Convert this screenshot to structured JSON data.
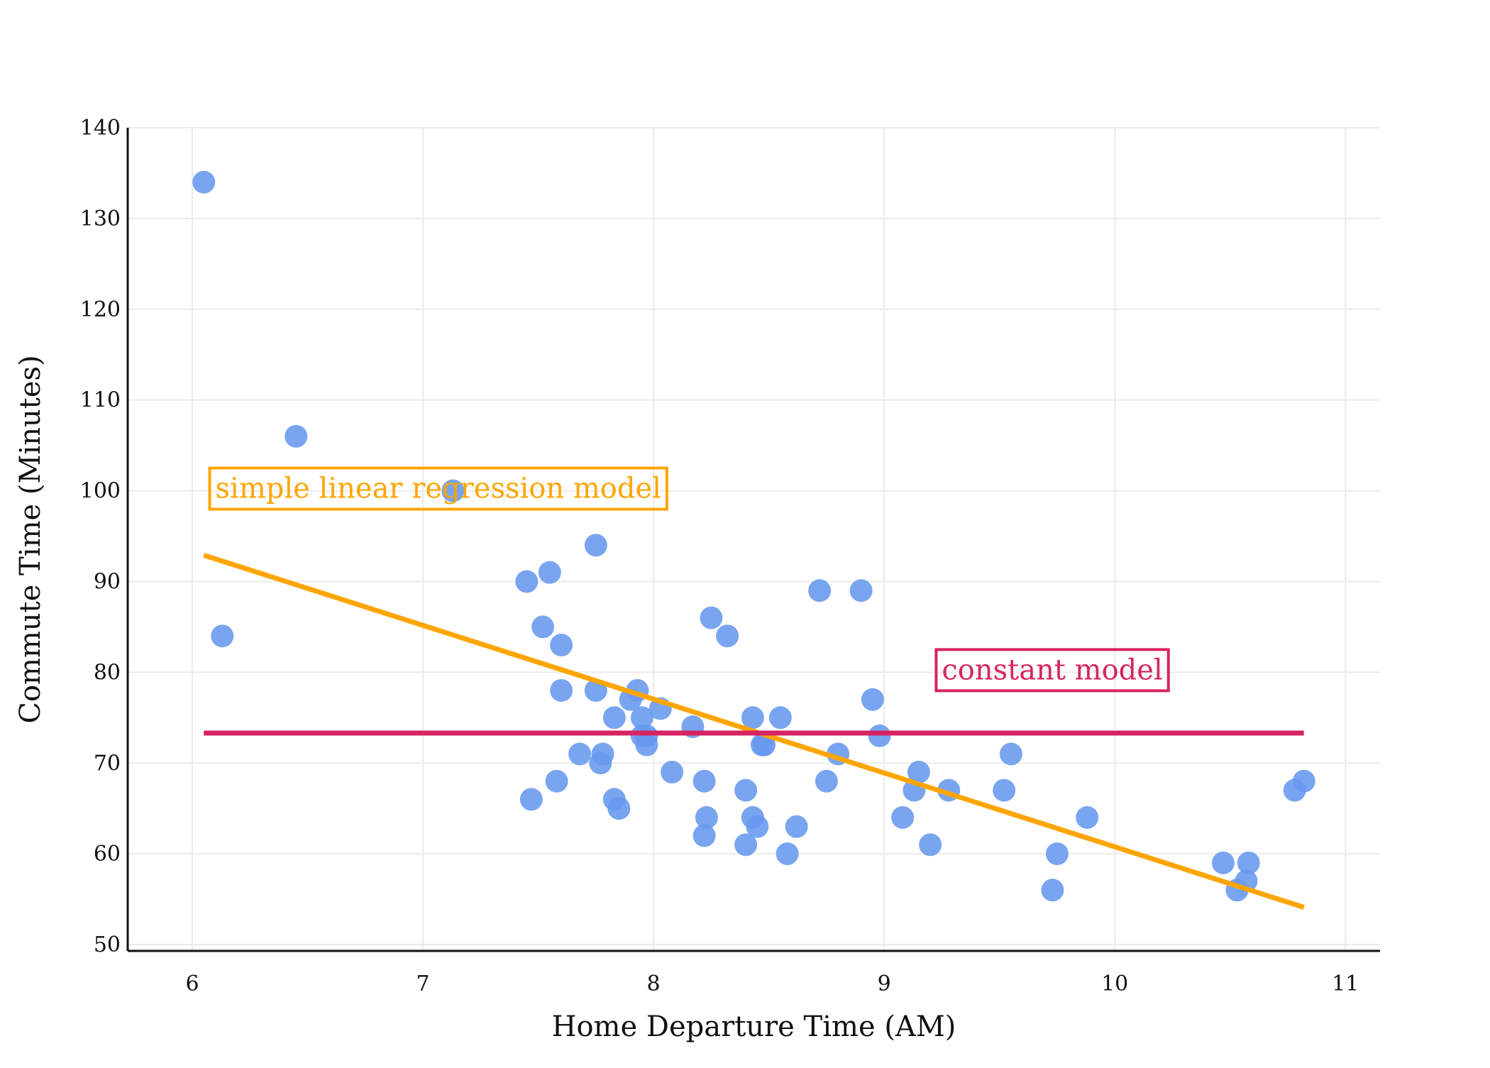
{
  "chart_data": {
    "type": "scatter",
    "title": "",
    "xlabel": "Home Departure Time (AM)",
    "ylabel": "Commute Time (Minutes)",
    "xlim": [
      5.72,
      11.15
    ],
    "ylim": [
      49.3,
      140
    ],
    "xticks": [
      6,
      7,
      8,
      9,
      10,
      11
    ],
    "yticks": [
      50,
      60,
      70,
      80,
      90,
      100,
      110,
      120,
      130,
      140
    ],
    "grid": true,
    "legend": "none",
    "series": [
      {
        "color": "#6699ee",
        "points": [
          {
            "x": 6.05,
            "y": 134
          },
          {
            "x": 6.13,
            "y": 84
          },
          {
            "x": 6.45,
            "y": 106
          },
          {
            "x": 7.13,
            "y": 100
          },
          {
            "x": 7.45,
            "y": 90
          },
          {
            "x": 7.47,
            "y": 66
          },
          {
            "x": 7.52,
            "y": 85
          },
          {
            "x": 7.55,
            "y": 91
          },
          {
            "x": 7.58,
            "y": 68
          },
          {
            "x": 7.6,
            "y": 83
          },
          {
            "x": 7.6,
            "y": 78
          },
          {
            "x": 7.68,
            "y": 71
          },
          {
            "x": 7.75,
            "y": 94
          },
          {
            "x": 7.75,
            "y": 78
          },
          {
            "x": 7.77,
            "y": 70
          },
          {
            "x": 7.78,
            "y": 71
          },
          {
            "x": 7.83,
            "y": 75
          },
          {
            "x": 7.83,
            "y": 66
          },
          {
            "x": 7.85,
            "y": 65
          },
          {
            "x": 7.9,
            "y": 77
          },
          {
            "x": 7.93,
            "y": 78
          },
          {
            "x": 7.95,
            "y": 75
          },
          {
            "x": 7.95,
            "y": 73
          },
          {
            "x": 7.97,
            "y": 72
          },
          {
            "x": 7.97,
            "y": 73
          },
          {
            "x": 8.03,
            "y": 76
          },
          {
            "x": 8.08,
            "y": 69
          },
          {
            "x": 8.17,
            "y": 74
          },
          {
            "x": 8.22,
            "y": 68
          },
          {
            "x": 8.22,
            "y": 62
          },
          {
            "x": 8.23,
            "y": 64
          },
          {
            "x": 8.25,
            "y": 86
          },
          {
            "x": 8.32,
            "y": 84
          },
          {
            "x": 8.4,
            "y": 67
          },
          {
            "x": 8.4,
            "y": 61
          },
          {
            "x": 8.43,
            "y": 75
          },
          {
            "x": 8.43,
            "y": 64
          },
          {
            "x": 8.45,
            "y": 63
          },
          {
            "x": 8.47,
            "y": 72
          },
          {
            "x": 8.48,
            "y": 72
          },
          {
            "x": 8.55,
            "y": 75
          },
          {
            "x": 8.58,
            "y": 60
          },
          {
            "x": 8.62,
            "y": 63
          },
          {
            "x": 8.72,
            "y": 89
          },
          {
            "x": 8.75,
            "y": 68
          },
          {
            "x": 8.8,
            "y": 71
          },
          {
            "x": 8.9,
            "y": 89
          },
          {
            "x": 8.95,
            "y": 77
          },
          {
            "x": 8.98,
            "y": 73
          },
          {
            "x": 9.08,
            "y": 64
          },
          {
            "x": 9.13,
            "y": 67
          },
          {
            "x": 9.15,
            "y": 69
          },
          {
            "x": 9.2,
            "y": 61
          },
          {
            "x": 9.28,
            "y": 67
          },
          {
            "x": 9.52,
            "y": 67
          },
          {
            "x": 9.55,
            "y": 71
          },
          {
            "x": 9.73,
            "y": 56
          },
          {
            "x": 9.75,
            "y": 60
          },
          {
            "x": 9.88,
            "y": 64
          },
          {
            "x": 10.47,
            "y": 59
          },
          {
            "x": 10.53,
            "y": 56
          },
          {
            "x": 10.57,
            "y": 57
          },
          {
            "x": 10.58,
            "y": 59
          },
          {
            "x": 10.78,
            "y": 67
          },
          {
            "x": 10.82,
            "y": 68
          }
        ]
      }
    ],
    "lines": [
      {
        "color": "#ffa500",
        "x": [
          6.05,
          10.82
        ],
        "y": [
          92.9,
          54.1
        ]
      },
      {
        "color": "#d62463",
        "x": [
          6.05,
          10.82
        ],
        "y": [
          73.3,
          73.3
        ]
      }
    ],
    "annotations": [
      {
        "text": "simple linear regression model",
        "color": "#ffa500",
        "x": 6.1,
        "y": 100
      },
      {
        "text": "constant model",
        "color": "#d62463",
        "x": 9.25,
        "y": 80
      }
    ]
  }
}
